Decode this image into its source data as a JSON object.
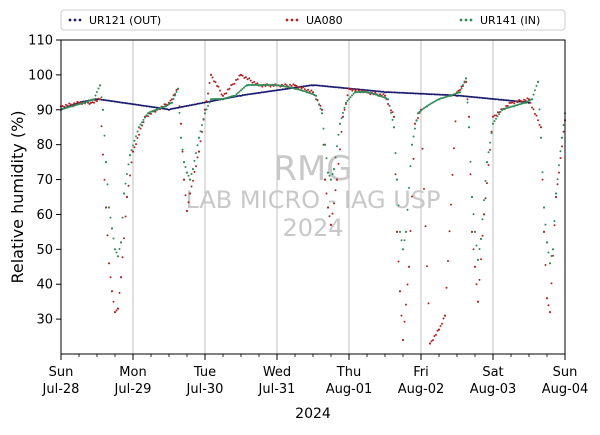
{
  "chart_data": {
    "type": "scatter",
    "xlabel": "2024",
    "ylabel": "Relative humidity (%)",
    "ylim": [
      20,
      110
    ],
    "yticks": [
      30,
      40,
      50,
      60,
      70,
      80,
      90,
      100,
      110
    ],
    "xlim": [
      "2024-07-28 00:00",
      "2024-08-04 00:00"
    ],
    "xticks": [
      {
        "day": "Sun",
        "date": "Jul-28"
      },
      {
        "day": "Mon",
        "date": "Jul-29"
      },
      {
        "day": "Tue",
        "date": "Jul-30"
      },
      {
        "day": "Wed",
        "date": "Jul-31"
      },
      {
        "day": "Thu",
        "date": "Aug-01"
      },
      {
        "day": "Fri",
        "date": "Aug-02"
      },
      {
        "day": "Sat",
        "date": "Aug-03"
      },
      {
        "day": "Sun",
        "date": "Aug-04"
      }
    ],
    "grid": "vertical-major",
    "legend_position": "top",
    "watermark": [
      "RMG",
      "LAB MICRO - IAG USP",
      "2024"
    ],
    "series": [
      {
        "name": "UR121 (OUT)",
        "color": "#1a1a6e",
        "points": [
          [
            "2024-07-28 00:00",
            90
          ],
          [
            "2024-07-28 06:00",
            92
          ],
          [
            "2024-07-28 12:00",
            93
          ],
          [
            "2024-07-29 12:00",
            90
          ],
          [
            "2024-07-30 12:00",
            94
          ],
          [
            "2024-07-31 12:00",
            97
          ],
          [
            "2024-08-01 12:00",
            95
          ],
          [
            "2024-08-02 12:00",
            94
          ],
          [
            "2024-08-03 12:00",
            92
          ]
        ]
      },
      {
        "name": "UA080",
        "color": "#b22222",
        "points": [
          [
            "2024-07-28 00:00",
            91
          ],
          [
            "2024-07-28 06:00",
            92
          ],
          [
            "2024-07-28 10:00",
            92
          ],
          [
            "2024-07-28 13:00",
            93
          ],
          [
            "2024-07-28 15:00",
            62
          ],
          [
            "2024-07-28 16:00",
            46
          ],
          [
            "2024-07-28 17:00",
            38
          ],
          [
            "2024-07-28 18:00",
            32
          ],
          [
            "2024-07-28 19:00",
            33
          ],
          [
            "2024-07-28 20:00",
            42
          ],
          [
            "2024-07-28 22:00",
            65
          ],
          [
            "2024-07-29 00:00",
            78
          ],
          [
            "2024-07-29 04:00",
            88
          ],
          [
            "2024-07-29 08:00",
            90
          ],
          [
            "2024-07-29 12:00",
            92
          ],
          [
            "2024-07-29 15:00",
            96
          ],
          [
            "2024-07-29 16:00",
            86
          ],
          [
            "2024-07-29 17:00",
            70
          ],
          [
            "2024-07-29 18:00",
            61
          ],
          [
            "2024-07-29 19:00",
            66
          ],
          [
            "2024-07-29 22:00",
            78
          ],
          [
            "2024-07-30 00:00",
            90
          ],
          [
            "2024-07-30 02:00",
            100
          ],
          [
            "2024-07-30 06:00",
            94
          ],
          [
            "2024-07-30 12:00",
            100
          ],
          [
            "2024-07-30 18:00",
            97
          ],
          [
            "2024-07-31 00:00",
            97
          ],
          [
            "2024-07-31 06:00",
            97
          ],
          [
            "2024-07-31 12:00",
            95
          ],
          [
            "2024-07-31 15:00",
            90
          ],
          [
            "2024-07-31 16:00",
            70
          ],
          [
            "2024-07-31 17:00",
            62
          ],
          [
            "2024-07-31 18:00",
            57
          ],
          [
            "2024-07-31 20:00",
            70
          ],
          [
            "2024-07-31 22:00",
            88
          ],
          [
            "2024-08-01 00:00",
            96
          ],
          [
            "2024-08-01 06:00",
            95
          ],
          [
            "2024-08-01 12:00",
            94
          ],
          [
            "2024-08-01 15:00",
            88
          ],
          [
            "2024-08-01 16:00",
            55
          ],
          [
            "2024-08-01 17:00",
            38
          ],
          [
            "2024-08-01 18:00",
            24
          ],
          [
            "2024-08-01 20:00",
            45
          ],
          [
            "2024-08-01 22:00",
            86
          ],
          [
            "2024-08-02 00:00",
            90
          ],
          [
            "2024-08-02 03:00",
            23
          ],
          [
            "2024-08-02 06:00",
            27
          ],
          [
            "2024-08-02 08:00",
            31
          ],
          [
            "2024-08-02 12:00",
            95
          ],
          [
            "2024-08-02 15:00",
            98
          ],
          [
            "2024-08-02 16:00",
            88
          ],
          [
            "2024-08-02 17:00",
            55
          ],
          [
            "2024-08-02 18:00",
            45
          ],
          [
            "2024-08-02 19:00",
            35
          ],
          [
            "2024-08-02 21:00",
            60
          ],
          [
            "2024-08-03 00:00",
            88
          ],
          [
            "2024-08-03 06:00",
            92
          ],
          [
            "2024-08-03 12:00",
            93
          ],
          [
            "2024-08-03 16:00",
            85
          ],
          [
            "2024-08-03 17:00",
            55
          ],
          [
            "2024-08-03 18:00",
            36
          ],
          [
            "2024-08-03 19:00",
            32
          ],
          [
            "2024-08-03 21:00",
            65
          ],
          [
            "2024-08-04 00:00",
            87
          ]
        ]
      },
      {
        "name": "UR141 (IN)",
        "color": "#2e8b57",
        "points": [
          [
            "2024-07-28 00:00",
            90
          ],
          [
            "2024-07-28 04:00",
            91
          ],
          [
            "2024-07-28 08:00",
            92
          ],
          [
            "2024-07-28 11:00",
            93
          ],
          [
            "2024-07-28 13:00",
            97
          ],
          [
            "2024-07-28 14:00",
            90
          ],
          [
            "2024-07-28 15:00",
            75
          ],
          [
            "2024-07-28 16:00",
            62
          ],
          [
            "2024-07-28 17:00",
            56
          ],
          [
            "2024-07-28 18:00",
            50
          ],
          [
            "2024-07-28 19:00",
            48
          ],
          [
            "2024-07-28 20:00",
            52
          ],
          [
            "2024-07-28 21:00",
            66
          ],
          [
            "2024-07-28 23:00",
            77
          ],
          [
            "2024-07-29 02:00",
            85
          ],
          [
            "2024-07-29 05:00",
            89
          ],
          [
            "2024-07-29 08:00",
            90
          ],
          [
            "2024-07-29 11:00",
            91
          ],
          [
            "2024-07-29 13:00",
            92
          ],
          [
            "2024-07-29 15:00",
            96
          ],
          [
            "2024-07-29 16:00",
            82
          ],
          [
            "2024-07-29 17:00",
            75
          ],
          [
            "2024-07-29 18:00",
            72
          ],
          [
            "2024-07-29 19:00",
            70
          ],
          [
            "2024-07-29 20:00",
            73
          ],
          [
            "2024-07-29 22:00",
            82
          ],
          [
            "2024-07-30 00:00",
            89
          ],
          [
            "2024-07-30 02:00",
            93
          ],
          [
            "2024-07-30 06:00",
            93
          ],
          [
            "2024-07-30 10:00",
            94
          ],
          [
            "2024-07-30 14:00",
            97
          ],
          [
            "2024-07-30 18:00",
            97
          ],
          [
            "2024-07-31 00:00",
            97
          ],
          [
            "2024-07-31 06:00",
            96
          ],
          [
            "2024-07-31 10:00",
            95
          ],
          [
            "2024-07-31 13:00",
            94
          ],
          [
            "2024-07-31 15:00",
            89
          ],
          [
            "2024-07-31 16:00",
            80
          ],
          [
            "2024-07-31 17:00",
            72
          ],
          [
            "2024-07-31 18:00",
            70
          ],
          [
            "2024-07-31 19:00",
            73
          ],
          [
            "2024-07-31 21:00",
            86
          ],
          [
            "2024-07-31 23:00",
            92
          ],
          [
            "2024-08-01 02:00",
            95
          ],
          [
            "2024-08-01 06:00",
            95
          ],
          [
            "2024-08-01 10:00",
            94
          ],
          [
            "2024-08-01 13:00",
            93
          ],
          [
            "2024-08-01 15:00",
            85
          ],
          [
            "2024-08-01 16:00",
            70
          ],
          [
            "2024-08-01 17:00",
            55
          ],
          [
            "2024-08-01 18:00",
            50
          ],
          [
            "2024-08-01 19:00",
            55
          ],
          [
            "2024-08-01 21:00",
            80
          ],
          [
            "2024-08-01 23:00",
            89
          ],
          [
            "2024-08-02 02:00",
            91
          ],
          [
            "2024-08-02 06:00",
            93
          ],
          [
            "2024-08-02 10:00",
            94
          ],
          [
            "2024-08-02 13:00",
            95
          ],
          [
            "2024-08-02 15:00",
            99
          ],
          [
            "2024-08-02 16:00",
            85
          ],
          [
            "2024-08-02 17:00",
            65
          ],
          [
            "2024-08-02 18:00",
            55
          ],
          [
            "2024-08-02 19:00",
            47
          ],
          [
            "2024-08-02 20:00",
            53
          ],
          [
            "2024-08-02 22:00",
            75
          ],
          [
            "2024-08-03 00:00",
            86
          ],
          [
            "2024-08-03 03:00",
            90
          ],
          [
            "2024-08-03 07:00",
            91
          ],
          [
            "2024-08-03 11:00",
            92
          ],
          [
            "2024-08-03 13:00",
            93
          ],
          [
            "2024-08-03 15:00",
            98
          ],
          [
            "2024-08-03 16:00",
            82
          ],
          [
            "2024-08-03 17:00",
            62
          ],
          [
            "2024-08-03 18:00",
            52
          ],
          [
            "2024-08-03 19:00",
            46
          ],
          [
            "2024-08-03 20:00",
            50
          ],
          [
            "2024-08-03 21:00",
            66
          ],
          [
            "2024-08-03 23:00",
            82
          ],
          [
            "2024-08-04 00:00",
            89
          ]
        ]
      }
    ]
  }
}
